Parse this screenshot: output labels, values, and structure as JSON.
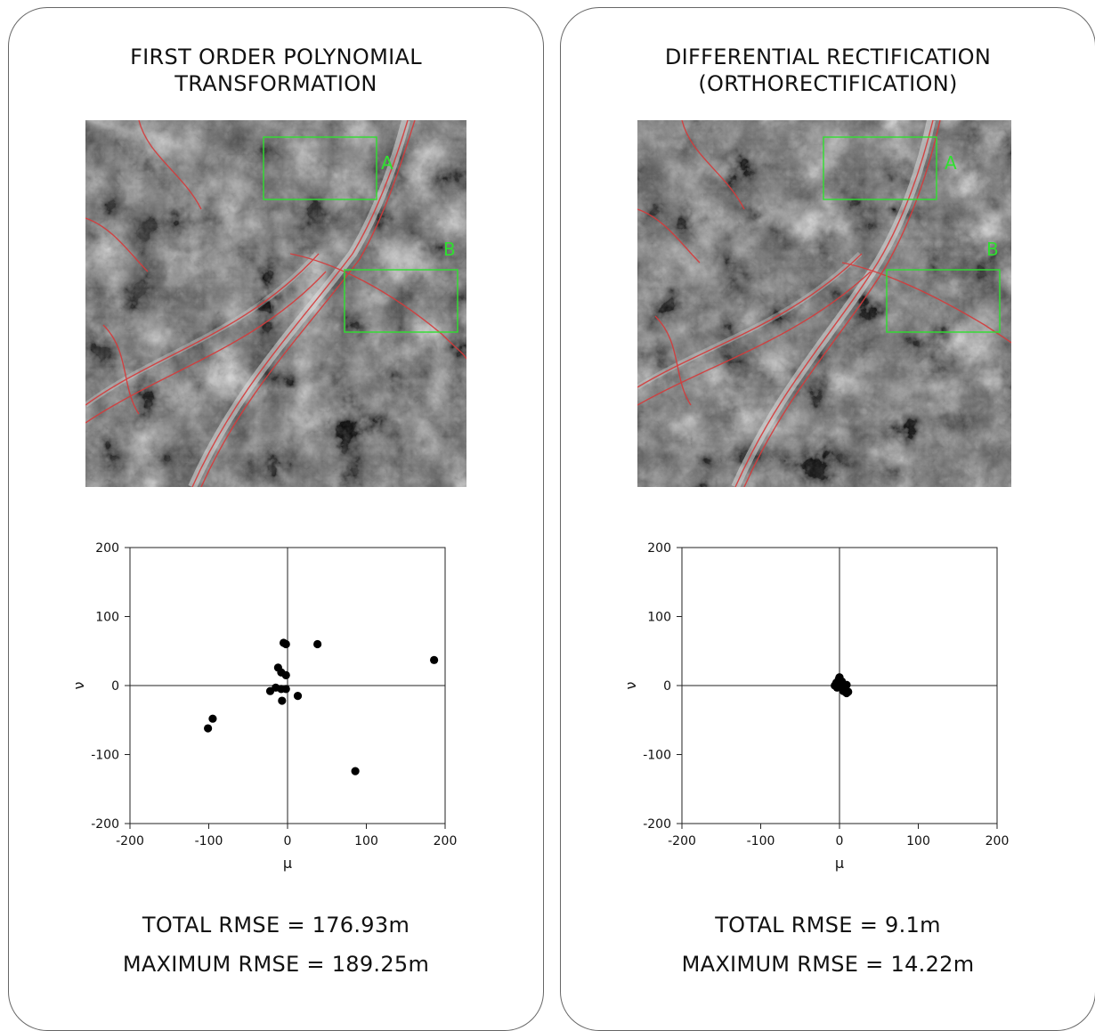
{
  "panels": [
    {
      "title_line1": "FIRST ORDER POLYNOMIAL",
      "title_line2": "TRANSFORMATION",
      "box_a_label": "A",
      "box_b_label": "B",
      "stat_total": "TOTAL RMSE = 176.93m",
      "stat_max": "MAXIMUM RMSE = 189.25m"
    },
    {
      "title_line1": "DIFFERENTIAL RECTIFICATION",
      "title_line2": "(ORTHORECTIFICATION)",
      "box_a_label": "A",
      "box_b_label": "B",
      "stat_total": "TOTAL RMSE = 9.1m",
      "stat_max": "MAXIMUM RMSE = 14.22m"
    }
  ],
  "colors": {
    "box_outline": "#2fe02f",
    "vector_overlay": "#d63a3a",
    "points": "#000000"
  },
  "chart_data": [
    {
      "type": "scatter",
      "title": "",
      "xlabel": "μ",
      "ylabel": "ν",
      "xlim": [
        -200,
        200
      ],
      "ylim": [
        -200,
        200
      ],
      "x_ticks": [
        -200,
        -100,
        0,
        100,
        200
      ],
      "y_ticks": [
        -200,
        -100,
        0,
        100,
        200
      ],
      "x_tick_labels": [
        "-200",
        "-100",
        "0",
        "100",
        "200"
      ],
      "y_tick_labels": [
        "200",
        "100",
        "0",
        "-100",
        "-200"
      ],
      "zero_lines": true,
      "grid": false,
      "points": [
        {
          "x": -5,
          "y": 62
        },
        {
          "x": -2,
          "y": 60
        },
        {
          "x": 38,
          "y": 60
        },
        {
          "x": 186,
          "y": 37
        },
        {
          "x": -12,
          "y": 26
        },
        {
          "x": -8,
          "y": 19
        },
        {
          "x": -2,
          "y": 15
        },
        {
          "x": -22,
          "y": -8
        },
        {
          "x": -15,
          "y": -3
        },
        {
          "x": -8,
          "y": -5
        },
        {
          "x": -2,
          "y": -5
        },
        {
          "x": 13,
          "y": -15
        },
        {
          "x": -7,
          "y": -22
        },
        {
          "x": -95,
          "y": -48
        },
        {
          "x": -101,
          "y": -62
        },
        {
          "x": 86,
          "y": -124
        }
      ]
    },
    {
      "type": "scatter",
      "title": "",
      "xlabel": "μ",
      "ylabel": "ν",
      "xlim": [
        -200,
        200
      ],
      "ylim": [
        -200,
        200
      ],
      "x_ticks": [
        -200,
        -100,
        0,
        100,
        200
      ],
      "y_ticks": [
        -200,
        -100,
        0,
        100,
        200
      ],
      "x_tick_labels": [
        "-200",
        "-100",
        "0",
        "100",
        "200"
      ],
      "y_tick_labels": [
        "200",
        "100",
        "0",
        "-100",
        "-200"
      ],
      "zero_lines": true,
      "grid": false,
      "points": [
        {
          "x": 0,
          "y": 12
        },
        {
          "x": -1,
          "y": 9
        },
        {
          "x": -4,
          "y": 4
        },
        {
          "x": -6,
          "y": 0
        },
        {
          "x": -3,
          "y": -3
        },
        {
          "x": 1,
          "y": -1
        },
        {
          "x": 4,
          "y": 2
        },
        {
          "x": 7,
          "y": -2
        },
        {
          "x": 9,
          "y": 1
        },
        {
          "x": 5,
          "y": -8
        },
        {
          "x": 9,
          "y": -11
        },
        {
          "x": 11,
          "y": -9
        },
        {
          "x": -2,
          "y": 5
        },
        {
          "x": 3,
          "y": 6
        }
      ]
    }
  ]
}
